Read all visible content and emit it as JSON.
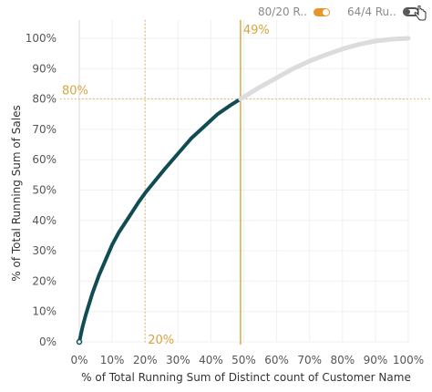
{
  "controls": {
    "toggle_8020": {
      "label": "80/20 R..",
      "state": "on"
    },
    "toggle_644": {
      "label": "64/4 Ru..",
      "state": "off"
    }
  },
  "colors": {
    "highlight_line": "#0f4d52",
    "rest_line": "#dcdcdc",
    "reference": "#e2a94a",
    "reference_text": "#d9a441",
    "grid": "#f0f0f0",
    "zero_line": "#d8d8d8"
  },
  "chart_data": {
    "type": "line",
    "title": "",
    "xlabel": "% of Total Running Sum of Distinct count of Customer Name",
    "ylabel": "% of Total Running Sum of Sales",
    "xlim": [
      0,
      100
    ],
    "ylim": [
      0,
      100
    ],
    "x_ticks": [
      "0%",
      "10%",
      "20%",
      "30%",
      "40%",
      "50%",
      "60%",
      "70%",
      "80%",
      "90%",
      "100%"
    ],
    "y_ticks": [
      "0%",
      "10%",
      "20%",
      "30%",
      "40%",
      "50%",
      "60%",
      "70%",
      "80%",
      "90%",
      "100%"
    ],
    "grid": true,
    "series": [
      {
        "segment": "highlighted",
        "x": [
          0,
          1,
          2,
          4,
          6,
          8,
          10,
          12,
          15,
          18,
          20,
          23,
          26,
          30,
          34,
          38,
          42,
          46,
          49
        ],
        "y": [
          0,
          5,
          9,
          16,
          22,
          27,
          32,
          36,
          41,
          46,
          49,
          53,
          57,
          62,
          67,
          71,
          75,
          78,
          80
        ]
      },
      {
        "segment": "remaining",
        "x": [
          49,
          55,
          60,
          65,
          70,
          75,
          80,
          85,
          90,
          95,
          100
        ],
        "y": [
          80,
          84,
          87,
          90,
          92.5,
          94.6,
          96.5,
          98,
          99.1,
          99.7,
          100
        ]
      }
    ],
    "reference_lines": {
      "vertical_solid": {
        "value": 49,
        "label": "49%"
      },
      "vertical_dotted": {
        "value": 20,
        "label": "20%"
      },
      "horizontal_dotted": {
        "value": 80,
        "label": "80%"
      }
    }
  }
}
